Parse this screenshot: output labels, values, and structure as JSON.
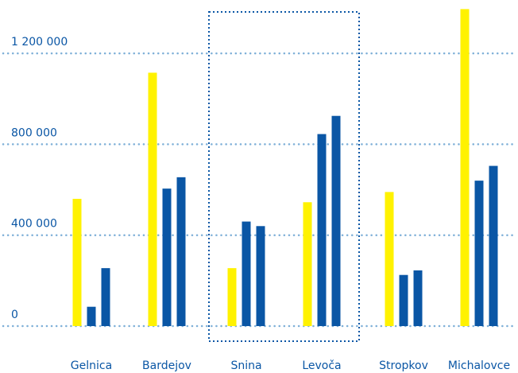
{
  "chart_data": {
    "type": "bar",
    "categories": [
      "Gelnica",
      "Bardejov",
      "Snina",
      "Levoča",
      "Stropkov",
      "Michalovce"
    ],
    "series": [
      {
        "values": [
          560000,
          1115000,
          255000,
          545000,
          590000,
          1395000
        ]
      },
      {
        "values": [
          85000,
          605000,
          460000,
          845000,
          225000,
          640000
        ]
      },
      {
        "values": [
          255000,
          655000,
          440000,
          925000,
          245000,
          705000
        ]
      }
    ],
    "series_colors": [
      "#fff200",
      "#0a56a5",
      "#0a56a5"
    ],
    "yticks": [
      {
        "value": 0,
        "label": "0"
      },
      {
        "value": 400000,
        "label": "400 000"
      },
      {
        "value": 800000,
        "label": "800 000"
      },
      {
        "value": 1200000,
        "label": "1 200 000"
      }
    ],
    "ylim": [
      0,
      1400000
    ],
    "grid": "horizontal-dotted",
    "highlight_categories": [
      "Snina",
      "Levoča"
    ],
    "grid_color": "#7fb0d8",
    "highlight_color": "#0a56a5",
    "title": "",
    "xlabel": "",
    "ylabel": ""
  }
}
